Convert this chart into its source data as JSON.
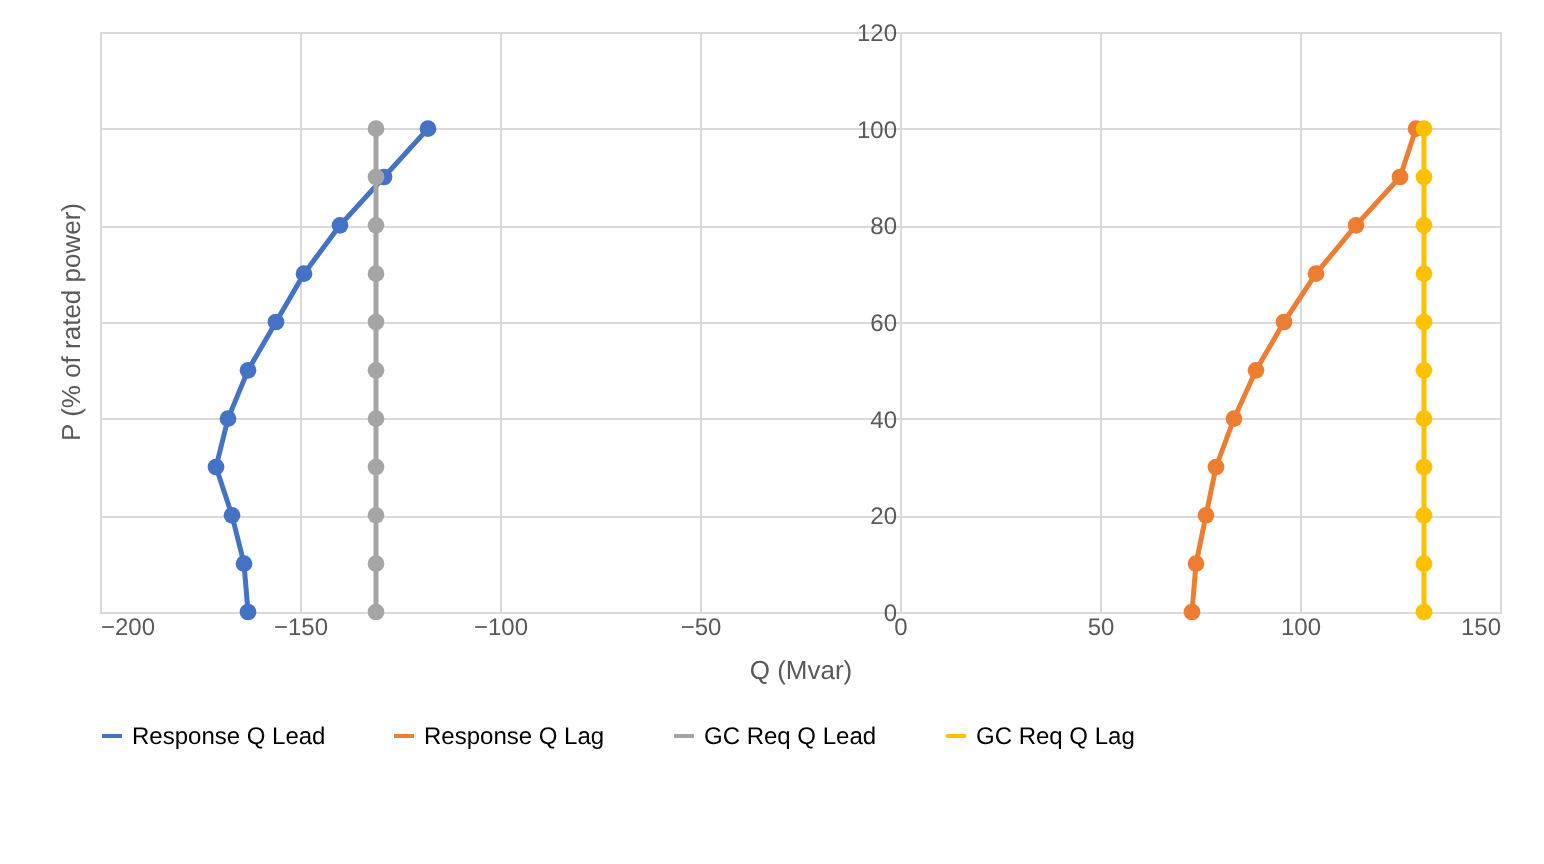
{
  "chart_data": {
    "type": "line",
    "xlabel": "Q (Mvar)",
    "ylabel": "P (% of rated  power)",
    "xlim": [
      -200,
      150
    ],
    "xticks": [
      -200,
      -150,
      -100,
      -50,
      0,
      50,
      100,
      150
    ],
    "ylim": [
      0,
      120
    ],
    "yticks": [
      0,
      20,
      40,
      60,
      80,
      100,
      120
    ],
    "grid": true,
    "legend": "bottom",
    "marker": "circle",
    "line_style": "solid",
    "series": [
      {
        "name": "Response Q Lead",
        "color": "#4472c4",
        "x": [
          -163,
          -164,
          -167,
          -171,
          -168,
          -163,
          -156,
          -149,
          -140,
          -129,
          -118
        ],
        "values": [
          0,
          10,
          20,
          30,
          40,
          50,
          60,
          70,
          80,
          90,
          100
        ]
      },
      {
        "name": "Response Q Lag",
        "color": "#ed7d31",
        "x": [
          73,
          74,
          76.5,
          79,
          83.5,
          89,
          96,
          104,
          114,
          125,
          129
        ],
        "values": [
          0,
          10,
          20,
          30,
          40,
          50,
          60,
          70,
          80,
          90,
          100
        ]
      },
      {
        "name": "GC Req Q Lead",
        "color": "#a5a5a5",
        "x": [
          -131,
          -131,
          -131,
          -131,
          -131,
          -131,
          -131,
          -131,
          -131,
          -131,
          -131
        ],
        "values": [
          0,
          10,
          20,
          30,
          40,
          50,
          60,
          70,
          80,
          90,
          100
        ]
      },
      {
        "name": "GC Req Q Lag",
        "color": "#ffc000",
        "x": [
          131,
          131,
          131,
          131,
          131,
          131,
          131,
          131,
          131,
          131,
          131
        ],
        "values": [
          0,
          10,
          20,
          30,
          40,
          50,
          60,
          70,
          80,
          90,
          100
        ]
      }
    ]
  }
}
